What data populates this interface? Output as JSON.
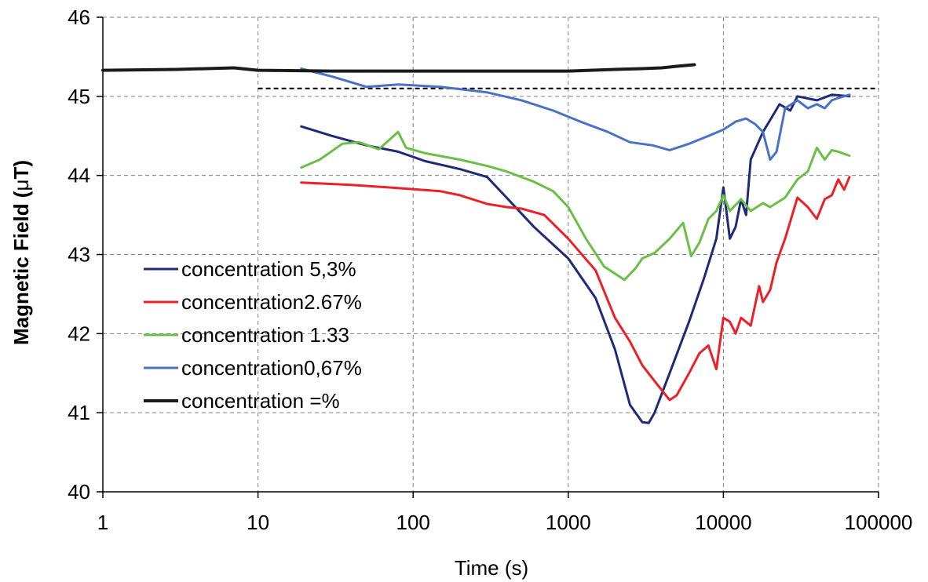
{
  "chart_data": {
    "type": "line",
    "xlabel": "Time (s)",
    "ylabel_main": "Magnetic Field (",
    "ylabel_symbol": "μ",
    "ylabel_tail": "T)",
    "x_scale": "log",
    "xlim": [
      1,
      100000
    ],
    "ylim": [
      40,
      46
    ],
    "x_ticks": [
      1,
      10,
      100,
      1000,
      10000,
      100000
    ],
    "x_tick_labels": [
      "1",
      "10",
      "100",
      "1000",
      "10000",
      "100000"
    ],
    "y_ticks": [
      40,
      41,
      42,
      43,
      44,
      45,
      46
    ],
    "y_tick_labels": [
      "40",
      "41",
      "42",
      "43",
      "44",
      "45",
      "46"
    ],
    "grid": true,
    "legend_position": "lower-left",
    "reference_line": {
      "y": 45.1,
      "style": "dashed",
      "color": "#000000"
    },
    "series": [
      {
        "name": "concentration 5,3%",
        "color": "#1f2a7a",
        "width": 3,
        "points": [
          [
            19,
            44.62
          ],
          [
            30,
            44.5
          ],
          [
            50,
            44.38
          ],
          [
            80,
            44.3
          ],
          [
            120,
            44.18
          ],
          [
            200,
            44.08
          ],
          [
            300,
            43.98
          ],
          [
            400,
            43.72
          ],
          [
            600,
            43.35
          ],
          [
            1000,
            42.95
          ],
          [
            1500,
            42.45
          ],
          [
            2000,
            41.8
          ],
          [
            2500,
            41.1
          ],
          [
            3000,
            40.88
          ],
          [
            3300,
            40.87
          ],
          [
            3600,
            41.0
          ],
          [
            4500,
            41.5
          ],
          [
            6000,
            42.15
          ],
          [
            7500,
            42.7
          ],
          [
            9000,
            43.2
          ],
          [
            10000,
            43.85
          ],
          [
            11000,
            43.2
          ],
          [
            12000,
            43.35
          ],
          [
            13000,
            43.7
          ],
          [
            14000,
            43.5
          ],
          [
            15000,
            44.2
          ],
          [
            18000,
            44.55
          ],
          [
            20000,
            44.7
          ],
          [
            23000,
            44.9
          ],
          [
            27000,
            44.82
          ],
          [
            30000,
            45.0
          ],
          [
            40000,
            44.95
          ],
          [
            50000,
            45.02
          ],
          [
            65000,
            45.0
          ]
        ]
      },
      {
        "name": "concentration2.67%",
        "color": "#ec2027",
        "width": 3,
        "points": [
          [
            19,
            43.91
          ],
          [
            40,
            43.88
          ],
          [
            80,
            43.84
          ],
          [
            150,
            43.8
          ],
          [
            200,
            43.75
          ],
          [
            300,
            43.64
          ],
          [
            400,
            43.6
          ],
          [
            500,
            43.58
          ],
          [
            700,
            43.5
          ],
          [
            1000,
            43.2
          ],
          [
            1500,
            42.8
          ],
          [
            2000,
            42.2
          ],
          [
            2500,
            41.9
          ],
          [
            3000,
            41.6
          ],
          [
            3600,
            41.4
          ],
          [
            4500,
            41.16
          ],
          [
            5000,
            41.22
          ],
          [
            6000,
            41.5
          ],
          [
            7000,
            41.75
          ],
          [
            8000,
            41.85
          ],
          [
            9000,
            41.55
          ],
          [
            10000,
            42.2
          ],
          [
            11000,
            42.15
          ],
          [
            12000,
            42.0
          ],
          [
            13000,
            42.2
          ],
          [
            15000,
            42.1
          ],
          [
            17000,
            42.6
          ],
          [
            18000,
            42.4
          ],
          [
            20000,
            42.55
          ],
          [
            22000,
            42.9
          ],
          [
            25000,
            43.2
          ],
          [
            30000,
            43.72
          ],
          [
            35000,
            43.6
          ],
          [
            40000,
            43.45
          ],
          [
            45000,
            43.7
          ],
          [
            50000,
            43.75
          ],
          [
            55000,
            43.95
          ],
          [
            60000,
            43.82
          ],
          [
            65000,
            43.98
          ]
        ]
      },
      {
        "name": "concentration 1.33",
        "color": "#6abf45",
        "width": 3,
        "points": [
          [
            19,
            44.1
          ],
          [
            25,
            44.2
          ],
          [
            35,
            44.4
          ],
          [
            45,
            44.42
          ],
          [
            60,
            44.33
          ],
          [
            80,
            44.55
          ],
          [
            90,
            44.35
          ],
          [
            120,
            44.28
          ],
          [
            200,
            44.2
          ],
          [
            300,
            44.12
          ],
          [
            400,
            44.05
          ],
          [
            600,
            43.92
          ],
          [
            800,
            43.8
          ],
          [
            1000,
            43.6
          ],
          [
            1300,
            43.2
          ],
          [
            1700,
            42.85
          ],
          [
            2300,
            42.68
          ],
          [
            2700,
            42.82
          ],
          [
            3000,
            42.95
          ],
          [
            3600,
            43.02
          ],
          [
            4500,
            43.2
          ],
          [
            5500,
            43.4
          ],
          [
            6200,
            42.98
          ],
          [
            7000,
            43.15
          ],
          [
            8000,
            43.45
          ],
          [
            9000,
            43.55
          ],
          [
            10000,
            43.75
          ],
          [
            11000,
            43.55
          ],
          [
            13000,
            43.7
          ],
          [
            15000,
            43.55
          ],
          [
            18000,
            43.65
          ],
          [
            20000,
            43.6
          ],
          [
            25000,
            43.72
          ],
          [
            30000,
            43.95
          ],
          [
            35000,
            44.05
          ],
          [
            40000,
            44.35
          ],
          [
            45000,
            44.2
          ],
          [
            50000,
            44.32
          ],
          [
            55000,
            44.3
          ],
          [
            65000,
            44.25
          ]
        ]
      },
      {
        "name": "concentration0,67%",
        "color": "#4a72c4",
        "width": 3,
        "points": [
          [
            19,
            45.35
          ],
          [
            30,
            45.25
          ],
          [
            50,
            45.12
          ],
          [
            80,
            45.15
          ],
          [
            150,
            45.12
          ],
          [
            300,
            45.05
          ],
          [
            500,
            44.95
          ],
          [
            800,
            44.82
          ],
          [
            1200,
            44.68
          ],
          [
            1800,
            44.55
          ],
          [
            2500,
            44.42
          ],
          [
            3500,
            44.38
          ],
          [
            4500,
            44.32
          ],
          [
            6000,
            44.4
          ],
          [
            8000,
            44.5
          ],
          [
            10000,
            44.58
          ],
          [
            12000,
            44.68
          ],
          [
            14000,
            44.72
          ],
          [
            16000,
            44.65
          ],
          [
            18000,
            44.55
          ],
          [
            20000,
            44.2
          ],
          [
            22000,
            44.3
          ],
          [
            25000,
            44.85
          ],
          [
            30000,
            44.95
          ],
          [
            35000,
            44.85
          ],
          [
            40000,
            44.9
          ],
          [
            45000,
            44.85
          ],
          [
            50000,
            44.95
          ],
          [
            55000,
            44.98
          ],
          [
            65000,
            45.02
          ]
        ]
      },
      {
        "name": "concentration =%",
        "color": "#1a1a1a",
        "width": 4,
        "points": [
          [
            1,
            45.33
          ],
          [
            3,
            45.34
          ],
          [
            7,
            45.36
          ],
          [
            10,
            45.33
          ],
          [
            30,
            45.32
          ],
          [
            100,
            45.32
          ],
          [
            300,
            45.32
          ],
          [
            1000,
            45.32
          ],
          [
            2000,
            45.34
          ],
          [
            3000,
            45.35
          ],
          [
            4000,
            45.36
          ],
          [
            5000,
            45.38
          ],
          [
            6500,
            45.4
          ]
        ]
      }
    ]
  }
}
